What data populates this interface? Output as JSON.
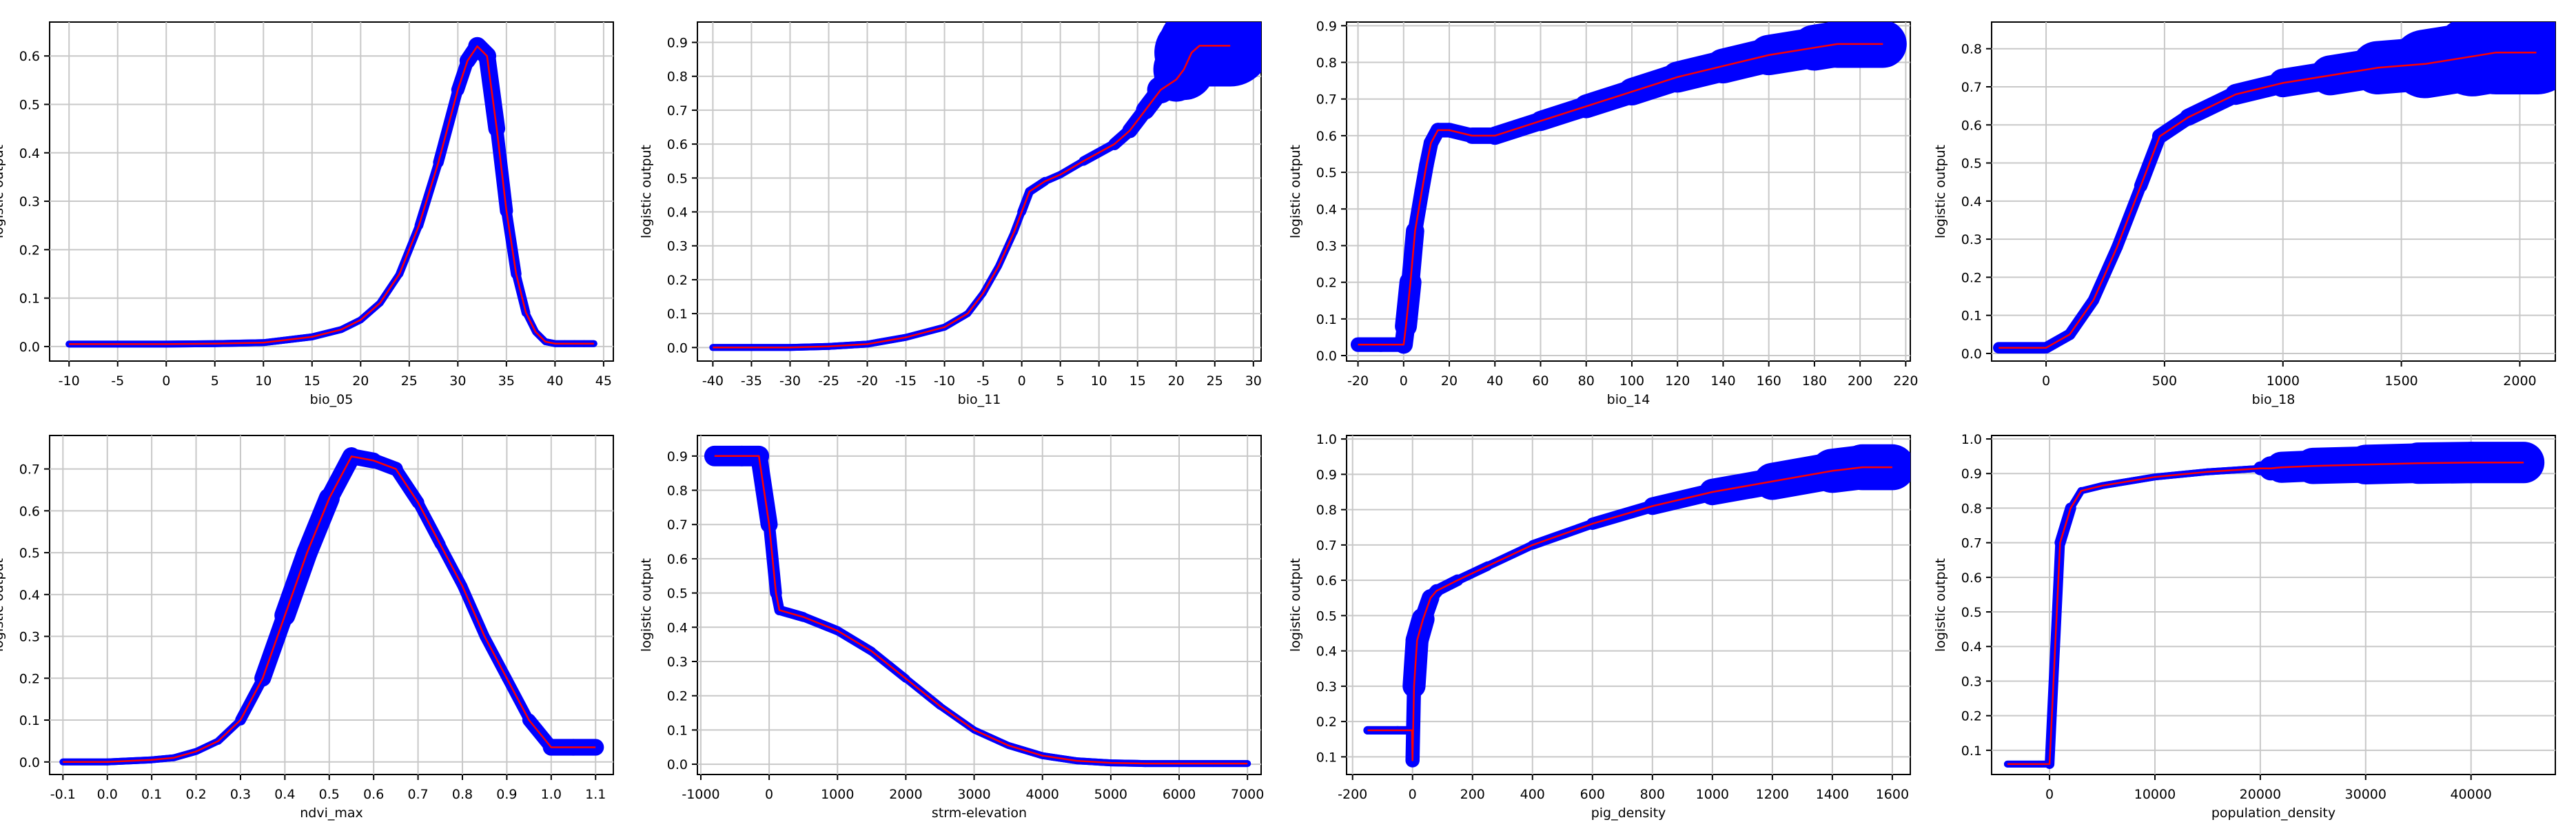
{
  "colors": {
    "band": "#0000ff",
    "mean": "#ff0000",
    "grid": "#c8c8c8",
    "axis": "#000000"
  },
  "chart_data": [
    {
      "type": "line",
      "xlabel": "bio_05",
      "ylabel": "logistic output",
      "xlim": [
        -12,
        46
      ],
      "ylim": [
        -0.03,
        0.67
      ],
      "xticks": [
        -10,
        -5,
        0,
        5,
        10,
        15,
        20,
        25,
        30,
        35,
        40,
        45
      ],
      "yticks": [
        0.0,
        0.1,
        0.2,
        0.3,
        0.4,
        0.5,
        0.6
      ],
      "ytick_labels": [
        "0.0",
        "0.1",
        "0.2",
        "0.3",
        "0.4",
        "0.5",
        "0.6"
      ],
      "x": [
        -10,
        -5,
        0,
        5,
        10,
        15,
        18,
        20,
        22,
        24,
        26,
        28,
        30,
        31,
        32,
        33,
        34,
        35,
        36,
        37,
        38,
        39,
        40,
        41,
        42,
        43,
        44
      ],
      "mean": [
        0.005,
        0.005,
        0.005,
        0.006,
        0.008,
        0.02,
        0.035,
        0.055,
        0.09,
        0.15,
        0.25,
        0.38,
        0.53,
        0.59,
        0.62,
        0.6,
        0.45,
        0.28,
        0.15,
        0.07,
        0.03,
        0.01,
        0.006,
        0.006,
        0.006,
        0.006,
        0.006
      ],
      "band_width": [
        0.005,
        0.005,
        0.005,
        0.005,
        0.005,
        0.005,
        0.006,
        0.006,
        0.007,
        0.008,
        0.008,
        0.01,
        0.012,
        0.015,
        0.018,
        0.02,
        0.015,
        0.012,
        0.01,
        0.008,
        0.006,
        0.005,
        0.004,
        0.004,
        0.004,
        0.004,
        0.004
      ]
    },
    {
      "type": "line",
      "xlabel": "bio_11",
      "ylabel": "logistic output",
      "xlim": [
        -42,
        31
      ],
      "ylim": [
        -0.04,
        0.96
      ],
      "xticks": [
        -40,
        -35,
        -30,
        -25,
        -20,
        -15,
        -10,
        -5,
        0,
        5,
        10,
        15,
        20,
        25,
        30
      ],
      "yticks": [
        0.0,
        0.1,
        0.2,
        0.3,
        0.4,
        0.5,
        0.6,
        0.7,
        0.8,
        0.9
      ],
      "ytick_labels": [
        "0.0",
        "0.1",
        "0.2",
        "0.3",
        "0.4",
        "0.5",
        "0.6",
        "0.7",
        "0.8",
        "0.9"
      ],
      "x": [
        -40,
        -35,
        -30,
        -25,
        -20,
        -15,
        -10,
        -7,
        -5,
        -3,
        -1,
        0,
        1,
        3,
        5,
        8,
        12,
        14,
        16,
        18,
        20,
        21,
        22,
        23,
        25,
        27
      ],
      "mean": [
        0.0,
        0.0,
        0.0,
        0.003,
        0.01,
        0.03,
        0.06,
        0.1,
        0.16,
        0.24,
        0.34,
        0.4,
        0.46,
        0.49,
        0.51,
        0.55,
        0.6,
        0.64,
        0.7,
        0.76,
        0.79,
        0.82,
        0.87,
        0.89,
        0.89,
        0.89
      ],
      "band_width": [
        0.004,
        0.004,
        0.004,
        0.004,
        0.005,
        0.006,
        0.007,
        0.008,
        0.008,
        0.01,
        0.01,
        0.012,
        0.014,
        0.012,
        0.01,
        0.012,
        0.016,
        0.02,
        0.025,
        0.03,
        0.05,
        0.08,
        0.1,
        0.12,
        0.12,
        0.12
      ]
    },
    {
      "type": "line",
      "xlabel": "bio_14",
      "ylabel": "logistic output",
      "xlim": [
        -25,
        222
      ],
      "ylim": [
        -0.015,
        0.91
      ],
      "xticks": [
        -20,
        0,
        20,
        40,
        60,
        80,
        100,
        120,
        140,
        160,
        180,
        200,
        220
      ],
      "yticks": [
        0.0,
        0.1,
        0.2,
        0.3,
        0.4,
        0.5,
        0.6,
        0.7,
        0.8,
        0.9
      ],
      "ytick_labels": [
        "0.0",
        "0.1",
        "0.2",
        "0.3",
        "0.4",
        "0.5",
        "0.6",
        "0.7",
        "0.8",
        "0.9"
      ],
      "x": [
        -20,
        -10,
        0,
        1,
        3,
        5,
        8,
        10,
        12,
        15,
        20,
        30,
        40,
        60,
        80,
        100,
        120,
        140,
        160,
        180,
        190,
        200,
        210
      ],
      "mean": [
        0.03,
        0.03,
        0.03,
        0.08,
        0.2,
        0.34,
        0.45,
        0.52,
        0.58,
        0.615,
        0.615,
        0.6,
        0.6,
        0.64,
        0.68,
        0.72,
        0.76,
        0.79,
        0.82,
        0.84,
        0.85,
        0.85,
        0.85
      ],
      "band_width": [
        0.02,
        0.02,
        0.02,
        0.03,
        0.03,
        0.02,
        0.02,
        0.02,
        0.02,
        0.02,
        0.02,
        0.02,
        0.025,
        0.025,
        0.03,
        0.035,
        0.04,
        0.045,
        0.05,
        0.06,
        0.065,
        0.065,
        0.065
      ]
    },
    {
      "type": "line",
      "xlabel": "bio_18",
      "ylabel": "logistic output",
      "xlim": [
        -230,
        2150
      ],
      "ylim": [
        -0.02,
        0.87
      ],
      "xticks": [
        0,
        500,
        1000,
        1500,
        2000
      ],
      "yticks": [
        0.0,
        0.1,
        0.2,
        0.3,
        0.4,
        0.5,
        0.6,
        0.7,
        0.8
      ],
      "ytick_labels": [
        "0.0",
        "0.1",
        "0.2",
        "0.3",
        "0.4",
        "0.5",
        "0.6",
        "0.7",
        "0.8"
      ],
      "x": [
        -200,
        0,
        100,
        200,
        300,
        400,
        480,
        600,
        800,
        1000,
        1200,
        1400,
        1600,
        1800,
        1900,
        2000,
        2070
      ],
      "mean": [
        0.015,
        0.015,
        0.05,
        0.14,
        0.28,
        0.44,
        0.57,
        0.62,
        0.68,
        0.71,
        0.73,
        0.75,
        0.76,
        0.78,
        0.79,
        0.79,
        0.79
      ],
      "band_width": [
        0.015,
        0.015,
        0.015,
        0.015,
        0.015,
        0.015,
        0.02,
        0.02,
        0.025,
        0.03,
        0.045,
        0.06,
        0.08,
        0.1,
        0.11,
        0.11,
        0.11
      ]
    },
    {
      "type": "line",
      "xlabel": "ndvi_max",
      "ylabel": "logistic output",
      "xlim": [
        -0.13,
        1.14
      ],
      "ylim": [
        -0.03,
        0.78
      ],
      "xticks": [
        -0.1,
        0.0,
        0.1,
        0.2,
        0.3,
        0.4,
        0.5,
        0.6,
        0.7,
        0.8,
        0.9,
        1.0,
        1.1
      ],
      "xtick_labels": [
        "-0.1",
        "0.0",
        "0.1",
        "0.2",
        "0.3",
        "0.4",
        "0.5",
        "0.6",
        "0.7",
        "0.8",
        "0.9",
        "1.0",
        "1.1"
      ],
      "yticks": [
        0.0,
        0.1,
        0.2,
        0.3,
        0.4,
        0.5,
        0.6,
        0.7
      ],
      "ytick_labels": [
        "0.0",
        "0.1",
        "0.2",
        "0.3",
        "0.4",
        "0.5",
        "0.6",
        "0.7"
      ],
      "x": [
        -0.1,
        0.0,
        0.1,
        0.15,
        0.2,
        0.25,
        0.3,
        0.35,
        0.4,
        0.45,
        0.5,
        0.55,
        0.6,
        0.65,
        0.7,
        0.75,
        0.8,
        0.85,
        0.9,
        0.95,
        1.0,
        1.05,
        1.1
      ],
      "mean": [
        0.0,
        0.0,
        0.005,
        0.01,
        0.025,
        0.05,
        0.1,
        0.2,
        0.35,
        0.5,
        0.63,
        0.73,
        0.72,
        0.7,
        0.62,
        0.52,
        0.42,
        0.3,
        0.2,
        0.1,
        0.035,
        0.035,
        0.035
      ],
      "band_width": [
        0.004,
        0.004,
        0.004,
        0.005,
        0.006,
        0.008,
        0.01,
        0.016,
        0.024,
        0.026,
        0.024,
        0.02,
        0.018,
        0.016,
        0.014,
        0.012,
        0.012,
        0.012,
        0.012,
        0.012,
        0.02,
        0.02,
        0.02
      ]
    },
    {
      "type": "line",
      "xlabel": "strm-elevation",
      "ylabel": "logistic output",
      "xlim": [
        -1050,
        7200
      ],
      "ylim": [
        -0.03,
        0.96
      ],
      "xticks": [
        -1000,
        0,
        1000,
        2000,
        3000,
        4000,
        5000,
        6000,
        7000
      ],
      "yticks": [
        0.0,
        0.1,
        0.2,
        0.3,
        0.4,
        0.5,
        0.6,
        0.7,
        0.8,
        0.9
      ],
      "ytick_labels": [
        "0.0",
        "0.1",
        "0.2",
        "0.3",
        "0.4",
        "0.5",
        "0.6",
        "0.7",
        "0.8",
        "0.9"
      ],
      "x": [
        -800,
        -400,
        -150,
        0,
        100,
        150,
        500,
        1000,
        1500,
        2000,
        2500,
        3000,
        3500,
        4000,
        4500,
        5000,
        5500,
        6000,
        6500,
        7000
      ],
      "mean": [
        0.9,
        0.9,
        0.9,
        0.7,
        0.5,
        0.45,
        0.43,
        0.39,
        0.33,
        0.25,
        0.17,
        0.1,
        0.055,
        0.025,
        0.01,
        0.004,
        0.002,
        0.002,
        0.002,
        0.002
      ],
      "band_width": [
        0.03,
        0.03,
        0.03,
        0.02,
        0.015,
        0.015,
        0.014,
        0.013,
        0.013,
        0.012,
        0.01,
        0.01,
        0.008,
        0.006,
        0.005,
        0.004,
        0.003,
        0.003,
        0.003,
        0.003
      ]
    },
    {
      "type": "line",
      "xlabel": "pig_density",
      "ylabel": "logistic output",
      "xlim": [
        -220,
        1660
      ],
      "ylim": [
        0.05,
        1.01
      ],
      "xticks": [
        -200,
        0,
        200,
        400,
        600,
        800,
        1000,
        1200,
        1400,
        1600
      ],
      "yticks": [
        0.1,
        0.2,
        0.3,
        0.4,
        0.5,
        0.6,
        0.7,
        0.8,
        0.9,
        1.0
      ],
      "ytick_labels": [
        "0.1",
        "0.2",
        "0.3",
        "0.4",
        "0.5",
        "0.6",
        "0.7",
        "0.8",
        "0.9",
        "1.0"
      ],
      "x": [
        -150,
        -50,
        -2,
        0,
        5,
        15,
        35,
        60,
        80,
        150,
        250,
        400,
        600,
        800,
        1000,
        1200,
        1400,
        1500,
        1600
      ],
      "mean": [
        0.175,
        0.175,
        0.175,
        0.09,
        0.3,
        0.43,
        0.49,
        0.55,
        0.57,
        0.6,
        0.64,
        0.7,
        0.76,
        0.81,
        0.85,
        0.88,
        0.91,
        0.92,
        0.92
      ],
      "band_width": [
        0.012,
        0.012,
        0.012,
        0.01,
        0.03,
        0.035,
        0.03,
        0.02,
        0.018,
        0.015,
        0.012,
        0.012,
        0.015,
        0.02,
        0.03,
        0.045,
        0.06,
        0.065,
        0.065
      ]
    },
    {
      "type": "line",
      "xlabel": "population_density",
      "ylabel": "logistic output",
      "xlim": [
        -5500,
        48000
      ],
      "ylim": [
        0.03,
        1.01
      ],
      "xticks": [
        0,
        10000,
        20000,
        30000,
        40000
      ],
      "yticks": [
        0.1,
        0.2,
        0.3,
        0.4,
        0.5,
        0.6,
        0.7,
        0.8,
        0.9,
        1.0
      ],
      "ytick_labels": [
        "0.1",
        "0.2",
        "0.3",
        "0.4",
        "0.5",
        "0.6",
        "0.7",
        "0.8",
        "0.9",
        "1.0"
      ],
      "x": [
        -4000,
        -1000,
        0,
        1000,
        2000,
        3000,
        5000,
        10000,
        15000,
        20000,
        21000,
        22000,
        25000,
        30000,
        35000,
        40000,
        45000
      ],
      "mean": [
        0.06,
        0.06,
        0.06,
        0.7,
        0.8,
        0.85,
        0.865,
        0.89,
        0.905,
        0.915,
        0.915,
        0.918,
        0.922,
        0.926,
        0.93,
        0.932,
        0.932
      ],
      "band_width": [
        0.008,
        0.008,
        0.008,
        0.02,
        0.012,
        0.01,
        0.008,
        0.008,
        0.008,
        0.01,
        0.03,
        0.04,
        0.05,
        0.055,
        0.06,
        0.06,
        0.06
      ]
    }
  ]
}
